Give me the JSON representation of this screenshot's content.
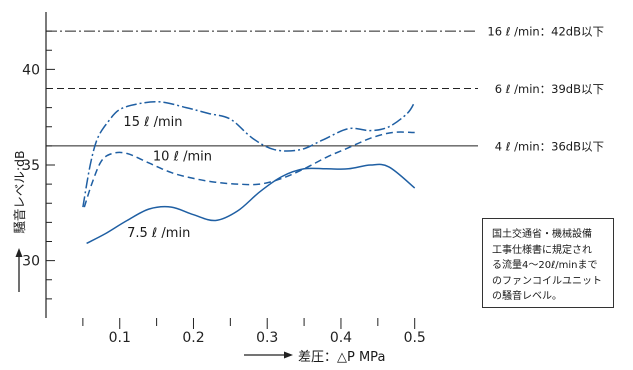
{
  "chart_data": {
    "type": "line",
    "ylabel": "騒音レベル:dB",
    "xlabel": "差圧：△P MPa",
    "xlim": [
      0,
      0.575
    ],
    "ylim": [
      27,
      43
    ],
    "xticks": [
      0.05,
      0.1,
      0.15,
      0.2,
      0.25,
      0.3,
      0.35,
      0.4,
      0.45,
      0.5
    ],
    "xtick_labels": [
      "0.1",
      "0.2",
      "0.3",
      "0.4",
      "0.5"
    ],
    "xtick_label_values": [
      0.1,
      0.2,
      0.3,
      0.4,
      0.5
    ],
    "yticks": [
      28,
      29,
      30,
      31,
      32,
      33,
      34,
      35,
      36,
      37,
      38,
      39,
      40,
      41,
      42
    ],
    "ytick_labels": [
      "30",
      "35",
      "40"
    ],
    "ytick_label_values": [
      30,
      35,
      40
    ],
    "series": [
      {
        "name": "7.5 ℓ /min",
        "style": "solid",
        "label_anchor": [
          0.11,
          31.5
        ],
        "points": [
          [
            0.055,
            30.9
          ],
          [
            0.08,
            31.4
          ],
          [
            0.11,
            32.1
          ],
          [
            0.14,
            32.7
          ],
          [
            0.17,
            32.8
          ],
          [
            0.2,
            32.4
          ],
          [
            0.23,
            32.1
          ],
          [
            0.26,
            32.6
          ],
          [
            0.29,
            33.6
          ],
          [
            0.32,
            34.4
          ],
          [
            0.35,
            34.8
          ],
          [
            0.38,
            34.8
          ],
          [
            0.41,
            34.8
          ],
          [
            0.44,
            35.0
          ],
          [
            0.465,
            34.9
          ],
          [
            0.5,
            33.8
          ]
        ]
      },
      {
        "name": "10 ℓ /min",
        "style": "dashed",
        "label_anchor": [
          0.145,
          35.5
        ],
        "points": [
          [
            0.052,
            32.8
          ],
          [
            0.062,
            34.0
          ],
          [
            0.075,
            35.2
          ],
          [
            0.09,
            35.6
          ],
          [
            0.11,
            35.6
          ],
          [
            0.14,
            35.1
          ],
          [
            0.17,
            34.6
          ],
          [
            0.2,
            34.3
          ],
          [
            0.23,
            34.1
          ],
          [
            0.26,
            34.0
          ],
          [
            0.29,
            34.0
          ],
          [
            0.32,
            34.3
          ],
          [
            0.35,
            34.8
          ],
          [
            0.38,
            35.4
          ],
          [
            0.41,
            35.9
          ],
          [
            0.44,
            36.4
          ],
          [
            0.47,
            36.7
          ],
          [
            0.5,
            36.7
          ]
        ]
      },
      {
        "name": "15 ℓ /min",
        "style": "dash-dot",
        "label_anchor": [
          0.105,
          37.3
        ],
        "points": [
          [
            0.05,
            32.8
          ],
          [
            0.06,
            35.0
          ],
          [
            0.07,
            36.4
          ],
          [
            0.085,
            37.3
          ],
          [
            0.1,
            37.9
          ],
          [
            0.125,
            38.2
          ],
          [
            0.155,
            38.3
          ],
          [
            0.19,
            38.0
          ],
          [
            0.22,
            37.7
          ],
          [
            0.25,
            37.4
          ],
          [
            0.28,
            36.4
          ],
          [
            0.31,
            35.8
          ],
          [
            0.345,
            35.8
          ],
          [
            0.375,
            36.3
          ],
          [
            0.41,
            36.9
          ],
          [
            0.44,
            36.8
          ],
          [
            0.465,
            37.0
          ],
          [
            0.49,
            37.7
          ],
          [
            0.5,
            38.3
          ]
        ]
      }
    ],
    "reference_lines": [
      {
        "y": 42,
        "style": "dash-dot",
        "label": "16 ℓ /min：42dB以下"
      },
      {
        "y": 39,
        "style": "dashed",
        "label": "6 ℓ /min：39dB以下"
      },
      {
        "y": 36,
        "style": "solid",
        "label": "4 ℓ /min：36dB以下"
      }
    ],
    "annotation": [
      "国土交通省・機械設備",
      "工事仕様書に規定され",
      "る流量4〜20ℓ/minまで",
      "のファンコイルユニット",
      "の騒音レベル。"
    ],
    "colors": {
      "series": "#1f5fa3",
      "reference": "#222222",
      "axis": "#222222"
    }
  }
}
